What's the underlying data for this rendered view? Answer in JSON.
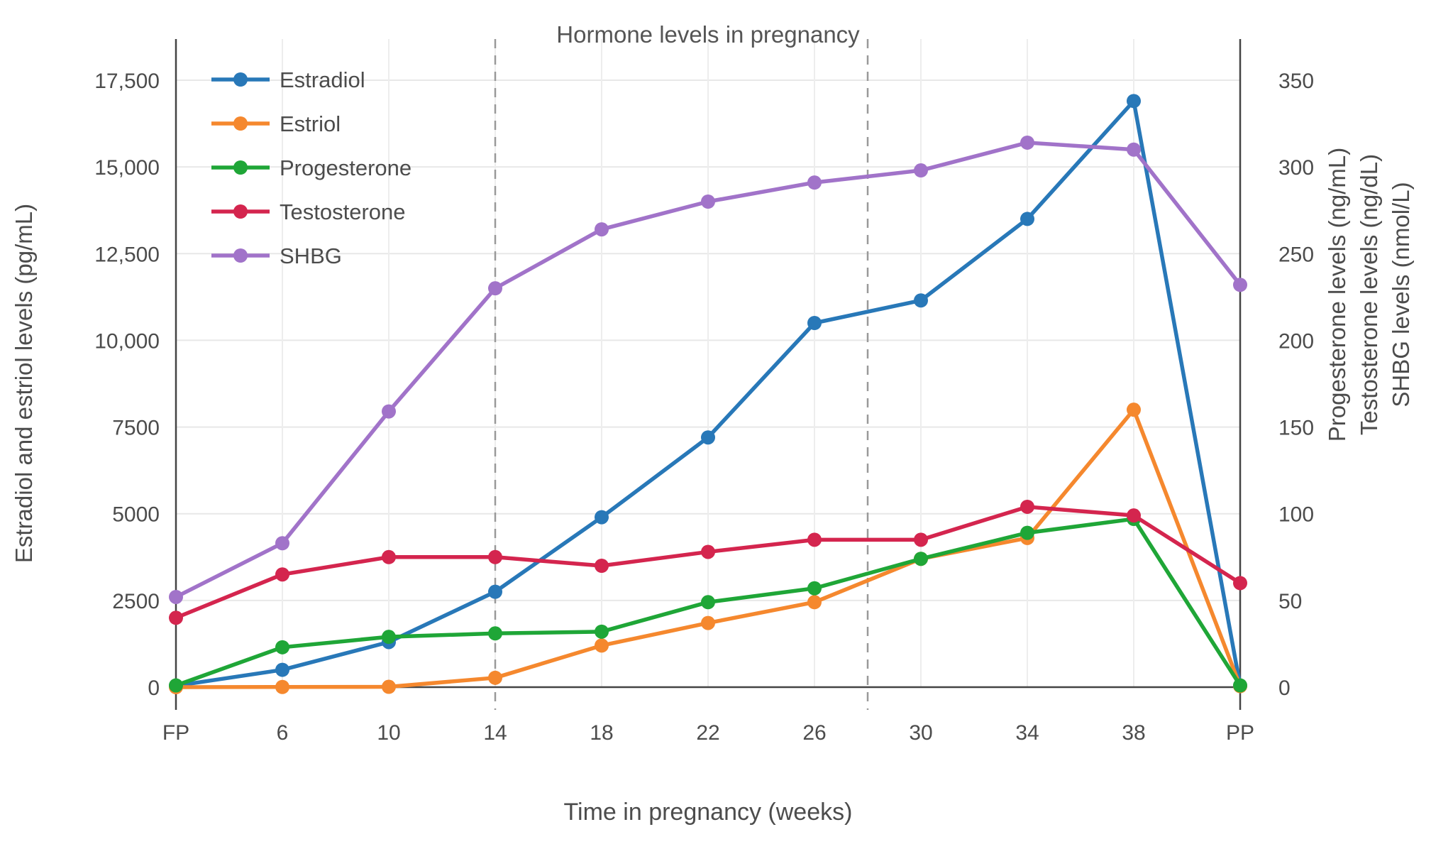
{
  "chart_data": {
    "type": "line",
    "title": "Hormone levels in pregnancy",
    "xlabel": "Time in pregnancy (weeks)",
    "x_categories": [
      "FP",
      "6",
      "10",
      "14",
      "18",
      "22",
      "26",
      "30",
      "34",
      "38",
      "PP"
    ],
    "y_left": {
      "label": "Estradiol and estriol levels (pg/mL)",
      "min": 0,
      "max": 17500,
      "ticks": [
        0,
        2500,
        5000,
        7500,
        10000,
        12500,
        15000,
        17500
      ],
      "tick_labels": [
        "0",
        "2500",
        "5000",
        "7500",
        "10,000",
        "12,500",
        "15,000",
        "17,500"
      ]
    },
    "y_right": {
      "labels": [
        "Progesterone levels (ng/mL)",
        "Testosterone levels (ng/dL)",
        "SHBG levels (nmol/L)"
      ],
      "min": 0,
      "max": 350,
      "ticks": [
        0,
        50,
        100,
        150,
        200,
        250,
        300,
        350
      ]
    },
    "reference_lines": {
      "dashed_weeks": [
        14,
        28
      ],
      "solid_at": [
        "FP",
        "PP"
      ]
    },
    "legend_position": "top-left",
    "grid": true,
    "colors": {
      "grid": "#e8e8e8",
      "grid_v": "#ededed",
      "dashed": "#999999",
      "axis": "#444444",
      "text": "#4c4c4c"
    },
    "series": [
      {
        "name": "Estradiol",
        "axis": "left",
        "unit": "pg/mL",
        "color": "#2878b8",
        "values": [
          40,
          500,
          1300,
          2750,
          4900,
          7200,
          10500,
          11150,
          13500,
          16900,
          40
        ]
      },
      {
        "name": "Estriol",
        "axis": "left",
        "unit": "pg/mL",
        "color": "#f5882e",
        "values": [
          0,
          5,
          10,
          270,
          1200,
          1850,
          2450,
          3700,
          4300,
          8000,
          30
        ]
      },
      {
        "name": "Progesterone",
        "axis": "right",
        "unit": "ng/mL",
        "color": "#1fa637",
        "values": [
          1,
          23,
          29,
          31,
          32,
          49,
          57,
          74,
          89,
          97,
          1
        ]
      },
      {
        "name": "Testosterone",
        "axis": "right",
        "unit": "ng/dL",
        "color": "#d4254e",
        "values": [
          40,
          65,
          75,
          75,
          70,
          78,
          85,
          85,
          104,
          99,
          60
        ]
      },
      {
        "name": "SHBG",
        "axis": "right",
        "unit": "nmol/L",
        "color": "#a173c9",
        "values": [
          52,
          83,
          159,
          230,
          264,
          280,
          291,
          298,
          314,
          310,
          232
        ]
      }
    ]
  }
}
